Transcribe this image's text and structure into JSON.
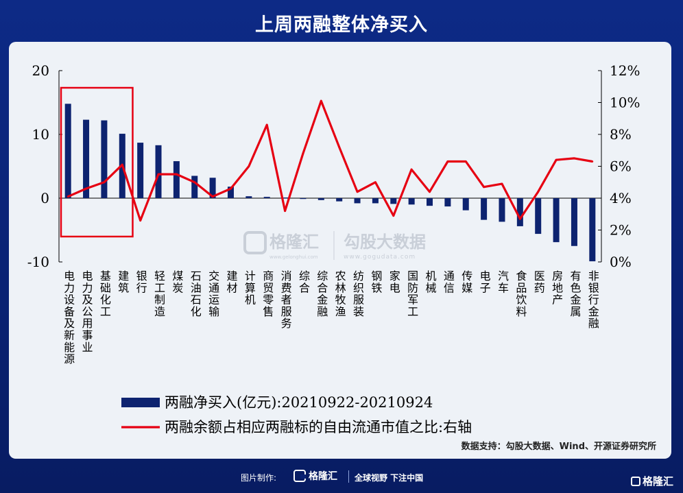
{
  "title": "上周两融整体净买入",
  "source": "数据支持：勾股大数据、Wind、开源证券研究所",
  "footer": {
    "made_by": "图片制作:",
    "logo": "格隆汇",
    "slogan": "全球视野 下注中国",
    "corner_logo": "格隆汇"
  },
  "watermark": {
    "brand": "格隆汇",
    "brand_url": "www.gelonghui.com",
    "partner": "勾股大数据",
    "partner_url": "www.gogudata.com"
  },
  "colors": {
    "bar": "#0d2370",
    "line": "#e60012",
    "highlight_box": "#e60012"
  },
  "chart_data": {
    "type": "bar",
    "categories": [
      "电力设备及新能源",
      "电力及公用事业",
      "基础化工",
      "建筑",
      "银行",
      "轻工制造",
      "煤炭",
      "石油石化",
      "交通运输",
      "建材",
      "计算机",
      "商贸零售",
      "消费者服务",
      "综合",
      "综合金融",
      "农林牧渔",
      "纺织服装",
      "钢铁",
      "家电",
      "国防军工",
      "机械",
      "通信",
      "传媒",
      "电子",
      "汽车",
      "食品饮料",
      "医药",
      "房地产",
      "有色金属",
      "非银行金融"
    ],
    "series": [
      {
        "name": "两融净买入(亿元):20210922-20210924",
        "type": "bar",
        "axis": "left",
        "values": [
          14.8,
          12.3,
          12.2,
          10.1,
          8.7,
          8.3,
          5.8,
          3.5,
          3.2,
          1.8,
          0.3,
          0.2,
          0.1,
          -0.1,
          -0.3,
          -0.5,
          -0.8,
          -0.8,
          -0.9,
          -1.0,
          -1.2,
          -1.3,
          -1.9,
          -3.4,
          -3.7,
          -4.4,
          -5.6,
          -6.9,
          -7.5,
          -9.9
        ]
      },
      {
        "name": "两融余额占相应两融标的自由流通市值之比:右轴",
        "type": "line",
        "axis": "right",
        "values": [
          4.1,
          4.6,
          5.0,
          6.1,
          2.6,
          5.5,
          5.5,
          5.0,
          4.1,
          4.6,
          6.0,
          8.6,
          3.2,
          6.8,
          10.1,
          7.2,
          4.4,
          5.0,
          2.9,
          5.8,
          4.4,
          6.3,
          6.3,
          4.7,
          4.9,
          2.7,
          4.4,
          6.4,
          6.5,
          6.3
        ]
      }
    ],
    "y_left": {
      "min": -10,
      "max": 20,
      "ticks": [
        "20",
        "10",
        "0",
        "-10"
      ]
    },
    "y_right": {
      "min": 0,
      "max": 12,
      "ticks": [
        "12%",
        "10%",
        "8%",
        "6%",
        "4%",
        "2%",
        "0%"
      ]
    },
    "highlight": {
      "from_category": "电力设备及新能源",
      "to_category": "建筑"
    },
    "legend_position": "bottom"
  }
}
